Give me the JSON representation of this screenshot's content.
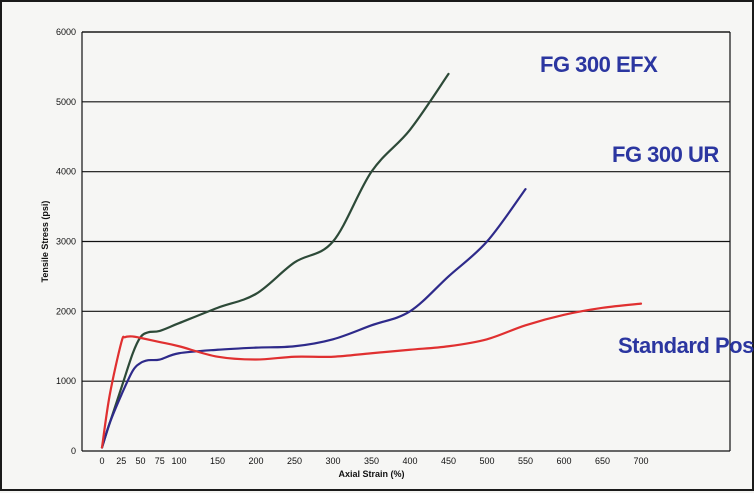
{
  "chart_data": {
    "type": "line",
    "title": "",
    "xlabel": "Axial Strain (%)",
    "ylabel": "Tensile Stress (psi)",
    "xlim": [
      0,
      700
    ],
    "ylim": [
      0,
      6000
    ],
    "xticks": [
      0,
      25,
      50,
      75,
      100,
      150,
      200,
      250,
      300,
      350,
      400,
      450,
      500,
      550,
      600,
      650,
      700
    ],
    "yticks": [
      0,
      1000,
      2000,
      3000,
      4000,
      5000,
      6000
    ],
    "grid": "horizontal",
    "series": [
      {
        "name": "FG 300 EFX",
        "color": "#2d4a38",
        "label_color": "#2b36a0",
        "x": [
          0,
          10,
          25,
          40,
          50,
          60,
          75,
          100,
          150,
          200,
          250,
          300,
          350,
          400,
          450
        ],
        "y": [
          50,
          400,
          900,
          1400,
          1630,
          1700,
          1720,
          1830,
          2050,
          2250,
          2700,
          3000,
          4000,
          4600,
          5400
        ]
      },
      {
        "name": "FG 300 UR",
        "color": "#2e2a8a",
        "label_color": "#2b36a0",
        "x": [
          0,
          10,
          25,
          40,
          50,
          60,
          75,
          100,
          150,
          200,
          250,
          300,
          350,
          400,
          450,
          500,
          550
        ],
        "y": [
          50,
          400,
          800,
          1150,
          1260,
          1300,
          1310,
          1400,
          1450,
          1480,
          1500,
          1600,
          1800,
          2000,
          2500,
          3000,
          3750
        ]
      },
      {
        "name": "Standard Post",
        "color": "#e03030",
        "label_color": "#2b36a0",
        "x": [
          0,
          10,
          25,
          30,
          40,
          50,
          75,
          100,
          150,
          200,
          250,
          300,
          350,
          400,
          450,
          500,
          550,
          600,
          650,
          700
        ],
        "y": [
          50,
          800,
          1550,
          1630,
          1640,
          1620,
          1560,
          1500,
          1350,
          1310,
          1350,
          1350,
          1400,
          1450,
          1500,
          1600,
          1800,
          1950,
          2050,
          2110
        ]
      }
    ]
  }
}
